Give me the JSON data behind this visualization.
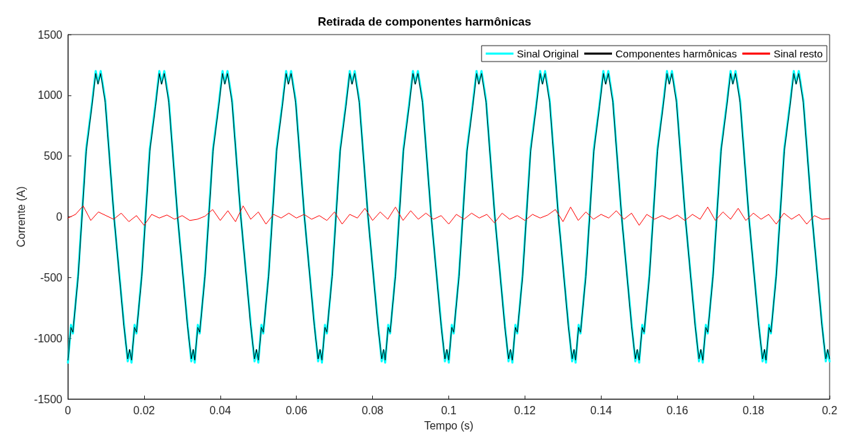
{
  "chart_data": {
    "type": "line",
    "title": "Retirada de componentes harmônicas",
    "xlabel": "Tempo (s)",
    "ylabel": "Corrente (A)",
    "xlim": [
      0,
      0.2
    ],
    "xticks": [
      0,
      0.02,
      0.04,
      0.06,
      0.08,
      0.1,
      0.12,
      0.14,
      0.16,
      0.18,
      0.2
    ],
    "ylim": [
      -1500,
      1500
    ],
    "yticks": [
      -1500,
      -1000,
      -500,
      0,
      500,
      1000,
      1500
    ],
    "grid": false,
    "legend": "top right",
    "marker": "none",
    "line_style": "solid",
    "x": [
      0,
      0.0008,
      0.0013,
      0.0027,
      0.0048,
      0.0063,
      0.0073,
      0.0079,
      0.0086,
      0.0098,
      0.0121,
      0.0147,
      0.0157,
      0.0162,
      0.0167,
      0.0175,
      0.018,
      0.0194,
      0.0215,
      0.023,
      0.024,
      0.0246,
      0.0253,
      0.0265,
      0.0288,
      0.0314,
      0.0324,
      0.0329,
      0.0333,
      0.0341,
      0.0346,
      0.036,
      0.0381,
      0.0396,
      0.0406,
      0.0412,
      0.0419,
      0.0431,
      0.0454,
      0.048,
      0.049,
      0.0495,
      0.05,
      0.0508,
      0.0513,
      0.0527,
      0.0548,
      0.0563,
      0.0573,
      0.0579,
      0.0586,
      0.0598,
      0.0621,
      0.0647,
      0.0657,
      0.0662,
      0.0667,
      0.0675,
      0.068,
      0.0694,
      0.0715,
      0.073,
      0.074,
      0.0746,
      0.0753,
      0.0765,
      0.0788,
      0.0814,
      0.0824,
      0.0829,
      0.0833,
      0.0841,
      0.0846,
      0.086,
      0.0881,
      0.0896,
      0.0906,
      0.0912,
      0.0919,
      0.0931,
      0.0954,
      0.098,
      0.099,
      0.0995,
      0.1,
      0.1008,
      0.1013,
      0.1027,
      0.1048,
      0.1063,
      0.1073,
      0.1079,
      0.1086,
      0.1098,
      0.1121,
      0.1147,
      0.1157,
      0.1162,
      0.1167,
      0.1175,
      0.118,
      0.1194,
      0.1215,
      0.123,
      0.124,
      0.1246,
      0.1253,
      0.1265,
      0.1288,
      0.1314,
      0.1324,
      0.1329,
      0.1333,
      0.1341,
      0.1346,
      0.136,
      0.1381,
      0.1396,
      0.1406,
      0.1412,
      0.1419,
      0.1431,
      0.1454,
      0.148,
      0.149,
      0.1495,
      0.15,
      0.1508,
      0.1513,
      0.1527,
      0.1548,
      0.1563,
      0.1573,
      0.1579,
      0.1586,
      0.1598,
      0.1621,
      0.1647,
      0.1657,
      0.1662,
      0.1667,
      0.1675,
      0.168,
      0.1694,
      0.1715,
      0.173,
      0.174,
      0.1746,
      0.1753,
      0.1765,
      0.1788,
      0.1814,
      0.1824,
      0.1829,
      0.1833,
      0.1841,
      0.1846,
      0.186,
      0.1881,
      0.1896,
      0.1906,
      0.1912,
      0.1919,
      0.1931,
      0.1954,
      0.198,
      0.199,
      0.1995,
      0.2
    ],
    "series": [
      {
        "name": "Sinal Original",
        "color": "#00ffff",
        "values": [
          -1200,
          -890,
          -960,
          -470,
          560,
          930,
          1200,
          1100,
          1200,
          960,
          0,
          -880,
          -1190,
          -1100,
          -1200,
          -890,
          -960,
          -470,
          560,
          930,
          1200,
          1100,
          1200,
          960,
          0,
          -880,
          -1190,
          -1100,
          -1200,
          -890,
          -960,
          -470,
          560,
          930,
          1200,
          1100,
          1200,
          960,
          0,
          -880,
          -1190,
          -1100,
          -1200,
          -890,
          -960,
          -470,
          560,
          930,
          1200,
          1100,
          1200,
          960,
          0,
          -880,
          -1190,
          -1100,
          -1200,
          -890,
          -960,
          -470,
          560,
          930,
          1200,
          1100,
          1200,
          960,
          0,
          -880,
          -1190,
          -1100,
          -1200,
          -890,
          -960,
          -470,
          560,
          930,
          1200,
          1100,
          1200,
          960,
          0,
          -880,
          -1190,
          -1100,
          -1200,
          -890,
          -960,
          -470,
          560,
          930,
          1200,
          1100,
          1200,
          960,
          0,
          -880,
          -1190,
          -1100,
          -1200,
          -890,
          -960,
          -470,
          560,
          930,
          1200,
          1100,
          1200,
          960,
          0,
          -880,
          -1190,
          -1100,
          -1200,
          -890,
          -960,
          -470,
          560,
          930,
          1200,
          1100,
          1200,
          960,
          0,
          -880,
          -1190,
          -1100,
          -1200,
          -890,
          -960,
          -470,
          560,
          930,
          1200,
          1100,
          1200,
          960,
          0,
          -880,
          -1190,
          -1100,
          -1200,
          -890,
          -960,
          -470,
          560,
          930,
          1200,
          1100,
          1200,
          960,
          0,
          -880,
          -1190,
          -1100,
          -1200,
          -890,
          -960,
          -470,
          560,
          930,
          1200,
          1100,
          1200,
          960,
          0,
          -880,
          -1190,
          -1100,
          -1190
        ]
      },
      {
        "name": "Componentes harmônicas",
        "color": "#000000",
        "values": [
          -1180,
          -910,
          -950,
          -490,
          540,
          910,
          1180,
          1090,
          1180,
          940,
          0,
          -900,
          -1170,
          -1090,
          -1180,
          -910,
          -950,
          -490,
          540,
          910,
          1180,
          1090,
          1180,
          940,
          0,
          -900,
          -1170,
          -1090,
          -1180,
          -910,
          -950,
          -490,
          540,
          910,
          1180,
          1090,
          1180,
          940,
          0,
          -900,
          -1170,
          -1090,
          -1180,
          -910,
          -950,
          -490,
          540,
          910,
          1180,
          1090,
          1180,
          940,
          0,
          -900,
          -1170,
          -1090,
          -1180,
          -910,
          -950,
          -490,
          540,
          910,
          1180,
          1090,
          1180,
          940,
          0,
          -900,
          -1170,
          -1090,
          -1180,
          -910,
          -950,
          -490,
          540,
          910,
          1180,
          1090,
          1180,
          940,
          0,
          -900,
          -1170,
          -1090,
          -1180,
          -910,
          -950,
          -490,
          540,
          910,
          1180,
          1090,
          1180,
          940,
          0,
          -900,
          -1170,
          -1090,
          -1180,
          -910,
          -950,
          -490,
          540,
          910,
          1180,
          1090,
          1180,
          940,
          0,
          -900,
          -1170,
          -1090,
          -1180,
          -910,
          -950,
          -490,
          540,
          910,
          1180,
          1090,
          1180,
          940,
          0,
          -900,
          -1170,
          -1090,
          -1180,
          -910,
          -950,
          -490,
          540,
          910,
          1180,
          1090,
          1180,
          940,
          0,
          -900,
          -1170,
          -1090,
          -1180,
          -910,
          -950,
          -490,
          540,
          910,
          1180,
          1090,
          1180,
          940,
          0,
          -900,
          -1170,
          -1090,
          -1180,
          -910,
          -950,
          -490,
          540,
          910,
          1180,
          1090,
          1180,
          940,
          0,
          -900,
          -1170,
          -1090,
          -1170
        ]
      },
      {
        "name": "Sinal resto",
        "color": "#ff0000",
        "x": [
          0,
          0.002,
          0.004,
          0.006,
          0.008,
          0.01,
          0.012,
          0.014,
          0.016,
          0.018,
          0.02,
          0.022,
          0.024,
          0.026,
          0.028,
          0.03,
          0.032,
          0.034,
          0.036,
          0.038,
          0.04,
          0.042,
          0.044,
          0.046,
          0.048,
          0.05,
          0.052,
          0.054,
          0.056,
          0.058,
          0.06,
          0.062,
          0.064,
          0.066,
          0.068,
          0.07,
          0.072,
          0.074,
          0.076,
          0.078,
          0.08,
          0.082,
          0.084,
          0.086,
          0.088,
          0.09,
          0.092,
          0.094,
          0.096,
          0.098,
          0.1,
          0.102,
          0.104,
          0.106,
          0.108,
          0.11,
          0.112,
          0.114,
          0.116,
          0.118,
          0.12,
          0.122,
          0.124,
          0.126,
          0.128,
          0.13,
          0.132,
          0.134,
          0.136,
          0.138,
          0.14,
          0.142,
          0.144,
          0.146,
          0.148,
          0.15,
          0.152,
          0.154,
          0.156,
          0.158,
          0.16,
          0.162,
          0.164,
          0.166,
          0.168,
          0.17,
          0.172,
          0.174,
          0.176,
          0.178,
          0.18,
          0.182,
          0.184,
          0.186,
          0.188,
          0.19,
          0.192,
          0.194,
          0.196,
          0.198,
          0.2
        ],
        "values": [
          -10,
          20,
          90,
          -30,
          40,
          10,
          -20,
          30,
          -40,
          10,
          -70,
          20,
          -10,
          15,
          -20,
          10,
          -30,
          -20,
          5,
          60,
          -30,
          50,
          -40,
          90,
          -20,
          40,
          -60,
          20,
          -10,
          30,
          -10,
          20,
          -20,
          10,
          -30,
          40,
          -60,
          20,
          -10,
          70,
          -30,
          40,
          -20,
          80,
          -30,
          50,
          -20,
          30,
          -20,
          10,
          -60,
          20,
          -20,
          30,
          -10,
          20,
          -50,
          30,
          -20,
          10,
          -30,
          20,
          -10,
          15,
          60,
          -40,
          80,
          -30,
          40,
          -20,
          20,
          -10,
          50,
          -20,
          30,
          -70,
          20,
          -20,
          10,
          -20,
          15,
          -30,
          20,
          -20,
          80,
          -30,
          40,
          -20,
          70,
          -30,
          30,
          -20,
          20,
          -60,
          30,
          -20,
          20,
          -60,
          10,
          -20,
          -15
        ]
      }
    ]
  }
}
